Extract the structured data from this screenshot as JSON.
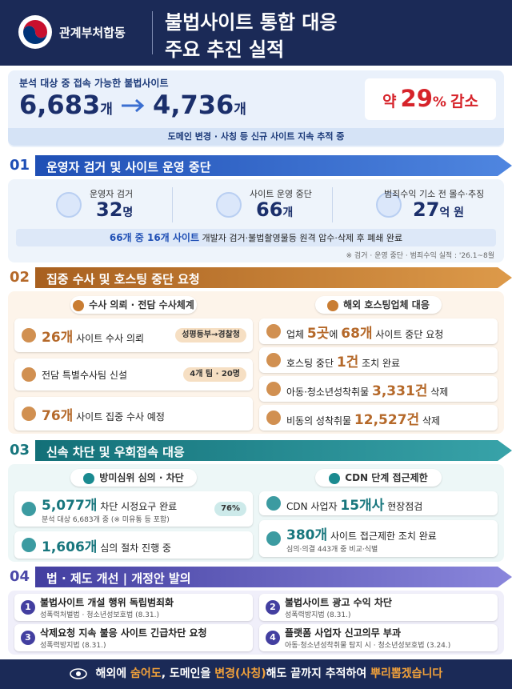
{
  "header": {
    "org": "관계부처합동",
    "title": [
      "불법사이트 통합 대응",
      "주요 추진 실적"
    ]
  },
  "summary": {
    "label": "분석 대상 중 접속 가능한 불법사이트",
    "from": {
      "value": "6,683",
      "unit": "개"
    },
    "to": {
      "value": "4,736",
      "unit": "개"
    },
    "change": {
      "prefix": "약",
      "value": "29",
      "unit": "%",
      "suffix": "감소"
    },
    "note": "도메인 변경 · 사칭 등 신규 사이트 지속 추적 중"
  },
  "s1": {
    "number": "01",
    "title": "운영자 검거 및 사이트 운영 중단",
    "stats": [
      {
        "label": "운영자 검거",
        "value": "32",
        "unit": "명"
      },
      {
        "label": "사이트 운영 중단",
        "value": "66",
        "unit": "개"
      },
      {
        "label": "범죄수익 기소 전 몰수·추징",
        "value": "27",
        "unit": "억 원"
      }
    ],
    "highlight": "66개 중 16개 사이트",
    "detail": "개발자 검거·불법촬영물등 원격 압수·삭제 후 폐쇄 완료",
    "footnote": "※ 검거 · 운영 중단 · 범죄수익 실적 : '26.1~8월"
  },
  "s2": {
    "number": "02",
    "title": "집중 수사 및 호스팅 중단 요청",
    "columns": [
      {
        "heading": "수사 의뢰 · 전담 수사체계",
        "items": [
          {
            "parts": [
              "26개",
              " 사이트 수사 의뢰"
            ],
            "tag": "성평등부→경찰청"
          },
          {
            "parts": [
              "전담 특별수사팀 신설"
            ],
            "tag": "4개 팀 · 20명"
          },
          {
            "parts": [
              "76개",
              " 사이트 집중 수사 예정"
            ]
          }
        ]
      },
      {
        "heading": "해외 호스팅업체 대응",
        "items": [
          {
            "parts": [
              "업체 ",
              "5곳",
              "에 ",
              "68개",
              " 사이트 중단 요청"
            ]
          },
          {
            "parts": [
              "호스팅 중단 ",
              "1건",
              " 조치 완료"
            ]
          },
          {
            "parts": [
              "아동·청소년성착취물 ",
              "3,331건",
              " 삭제"
            ]
          },
          {
            "parts": [
              "비동의 성착취물 ",
              "12,527건",
              " 삭제"
            ]
          }
        ]
      }
    ]
  },
  "s3": {
    "number": "03",
    "title": "신속 차단 및 우회접속 대응",
    "columns": [
      {
        "heading": "방미심위 심의 · 차단",
        "items": [
          {
            "parts": [
              "5,077개",
              " 차단 시정요구 완료"
            ],
            "sub": "분석 대상 6,683개 중 (※ 미유통 등 포함)",
            "tag": "76%"
          },
          {
            "parts": [
              "1,606개",
              " 심의 절차 진행 중"
            ]
          }
        ]
      },
      {
        "heading": "CDN 단계 접근제한",
        "items": [
          {
            "parts": [
              "CDN 사업자 ",
              "15개사",
              " 현장점검"
            ]
          },
          {
            "parts": [
              "380개",
              " 사이트 접근제한 조치 완료"
            ],
            "sub": "심의·의결 443개 중 비교·식별"
          }
        ]
      }
    ]
  },
  "s4": {
    "number": "04",
    "title": "법 · 제도 개선 | 개정안 발의",
    "items": [
      {
        "number": "1",
        "title": "불법사이트 개설 행위 독립범죄화",
        "law": "성폭력처벌법 · 청소년성보호법 (8.31.)"
      },
      {
        "number": "2",
        "title": "불법사이트 광고 수익 차단",
        "law": "성폭력방지법 (8.31.)"
      },
      {
        "number": "3",
        "title": "삭제요청 지속 불응 사이트 긴급차단 요청",
        "law": "성폭력방지법 (8.31.)"
      },
      {
        "number": "4",
        "title": "플랫폼 사업자 신고의무 부과",
        "law": "아동·청소년성착취물 탐지 시 · 청소년성보호법 (3.24.)"
      }
    ]
  },
  "footer": {
    "parts": [
      "해외에 ",
      "숨어도",
      ", 도메인을 ",
      "변경(사칭)",
      "해도 끝까지 추적하여 ",
      "뿌리뽑겠습니다"
    ]
  }
}
